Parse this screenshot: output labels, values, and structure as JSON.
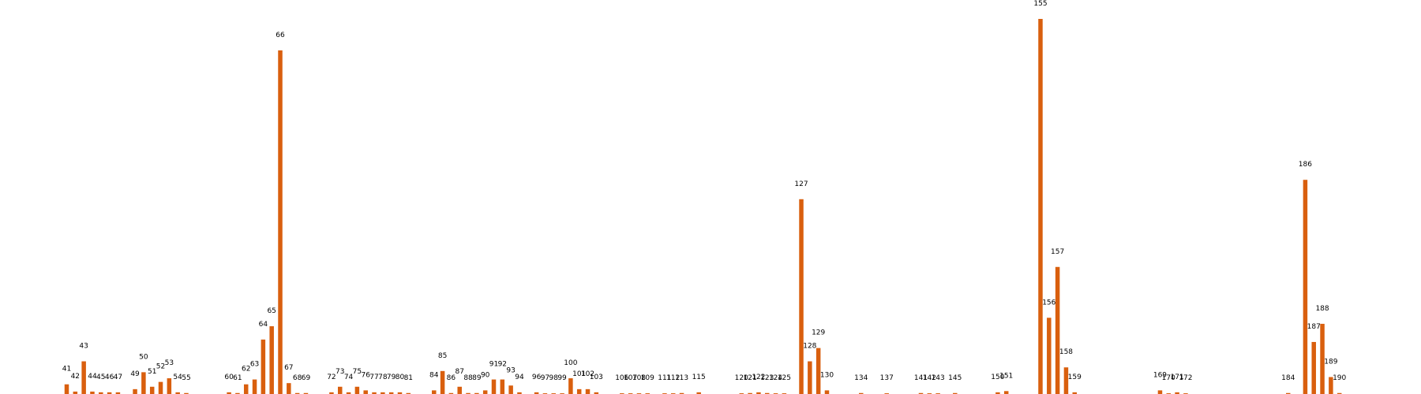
{
  "chart_data": {
    "type": "bar",
    "color": "#d95f0e",
    "ylim": [
      0,
      155
    ],
    "xlim": [
      35,
      196
    ],
    "grid": false,
    "bars": [
      {
        "x": 41,
        "value": 4
      },
      {
        "x": 42,
        "value": 1
      },
      {
        "x": 43,
        "value": 13.5
      },
      {
        "x": 44,
        "value": 1
      },
      {
        "x": 45,
        "value": 0.7
      },
      {
        "x": 46,
        "value": 0.7
      },
      {
        "x": 47,
        "value": 0.7
      },
      {
        "x": 49,
        "value": 2
      },
      {
        "x": 50,
        "value": 9
      },
      {
        "x": 51,
        "value": 3
      },
      {
        "x": 52,
        "value": 5
      },
      {
        "x": 53,
        "value": 6.5
      },
      {
        "x": 54,
        "value": 0.7
      },
      {
        "x": 55,
        "value": 0.4
      },
      {
        "x": 60,
        "value": 0.7
      },
      {
        "x": 61,
        "value": 0.4
      },
      {
        "x": 62,
        "value": 4
      },
      {
        "x": 63,
        "value": 6
      },
      {
        "x": 64,
        "value": 22.5
      },
      {
        "x": 65,
        "value": 28
      },
      {
        "x": 66,
        "value": 142
      },
      {
        "x": 67,
        "value": 4.5
      },
      {
        "x": 68,
        "value": 0.4
      },
      {
        "x": 69,
        "value": 0.4
      },
      {
        "x": 72,
        "value": 0.7
      },
      {
        "x": 73,
        "value": 3
      },
      {
        "x": 74,
        "value": 0.7
      },
      {
        "x": 75,
        "value": 3
      },
      {
        "x": 76,
        "value": 1.5
      },
      {
        "x": 77,
        "value": 0.7
      },
      {
        "x": 78,
        "value": 0.7
      },
      {
        "x": 79,
        "value": 0.7
      },
      {
        "x": 80,
        "value": 0.7
      },
      {
        "x": 81,
        "value": 0.4
      },
      {
        "x": 84,
        "value": 1.5
      },
      {
        "x": 85,
        "value": 9.5
      },
      {
        "x": 86,
        "value": 0.4
      },
      {
        "x": 87,
        "value": 3
      },
      {
        "x": 88,
        "value": 0.4
      },
      {
        "x": 89,
        "value": 0.4
      },
      {
        "x": 90,
        "value": 1.5
      },
      {
        "x": 91,
        "value": 6
      },
      {
        "x": 92,
        "value": 6
      },
      {
        "x": 93,
        "value": 3.5
      },
      {
        "x": 94,
        "value": 0.7
      },
      {
        "x": 96,
        "value": 0.7
      },
      {
        "x": 97,
        "value": 0.3
      },
      {
        "x": 98,
        "value": 0.3
      },
      {
        "x": 99,
        "value": 0.3
      },
      {
        "x": 100,
        "value": 6.5
      },
      {
        "x": 101,
        "value": 2
      },
      {
        "x": 102,
        "value": 2
      },
      {
        "x": 103,
        "value": 0.7
      },
      {
        "x": 106,
        "value": 0.3
      },
      {
        "x": 107,
        "value": 0.3
      },
      {
        "x": 108,
        "value": 0.3
      },
      {
        "x": 109,
        "value": 0.3
      },
      {
        "x": 111,
        "value": 0.3
      },
      {
        "x": 112,
        "value": 0.3
      },
      {
        "x": 113,
        "value": 0.4
      },
      {
        "x": 115,
        "value": 0.7
      },
      {
        "x": 120,
        "value": 0.3
      },
      {
        "x": 121,
        "value": 0.4
      },
      {
        "x": 122,
        "value": 0.7
      },
      {
        "x": 123,
        "value": 0.4
      },
      {
        "x": 124,
        "value": 0.3
      },
      {
        "x": 125,
        "value": 0.3
      },
      {
        "x": 127,
        "value": 80.5
      },
      {
        "x": 128,
        "value": 13.5
      },
      {
        "x": 129,
        "value": 19
      },
      {
        "x": 130,
        "value": 1.5
      },
      {
        "x": 134,
        "value": 0.4
      },
      {
        "x": 137,
        "value": 0.3
      },
      {
        "x": 141,
        "value": 0.4
      },
      {
        "x": 142,
        "value": 0.3
      },
      {
        "x": 143,
        "value": 0.3
      },
      {
        "x": 145,
        "value": 0.4
      },
      {
        "x": 150,
        "value": 0.7
      },
      {
        "x": 151,
        "value": 1.2
      },
      {
        "x": 155,
        "value": 155
      },
      {
        "x": 156,
        "value": 31.5
      },
      {
        "x": 157,
        "value": 52.5
      },
      {
        "x": 158,
        "value": 11
      },
      {
        "x": 159,
        "value": 0.7
      },
      {
        "x": 169,
        "value": 1.5
      },
      {
        "x": 170,
        "value": 0.3
      },
      {
        "x": 171,
        "value": 0.7
      },
      {
        "x": 172,
        "value": 0.3
      },
      {
        "x": 184,
        "value": 0.4
      },
      {
        "x": 186,
        "value": 88.5
      },
      {
        "x": 187,
        "value": 21.5
      },
      {
        "x": 188,
        "value": 29
      },
      {
        "x": 189,
        "value": 7
      },
      {
        "x": 190,
        "value": 0.4
      }
    ]
  }
}
